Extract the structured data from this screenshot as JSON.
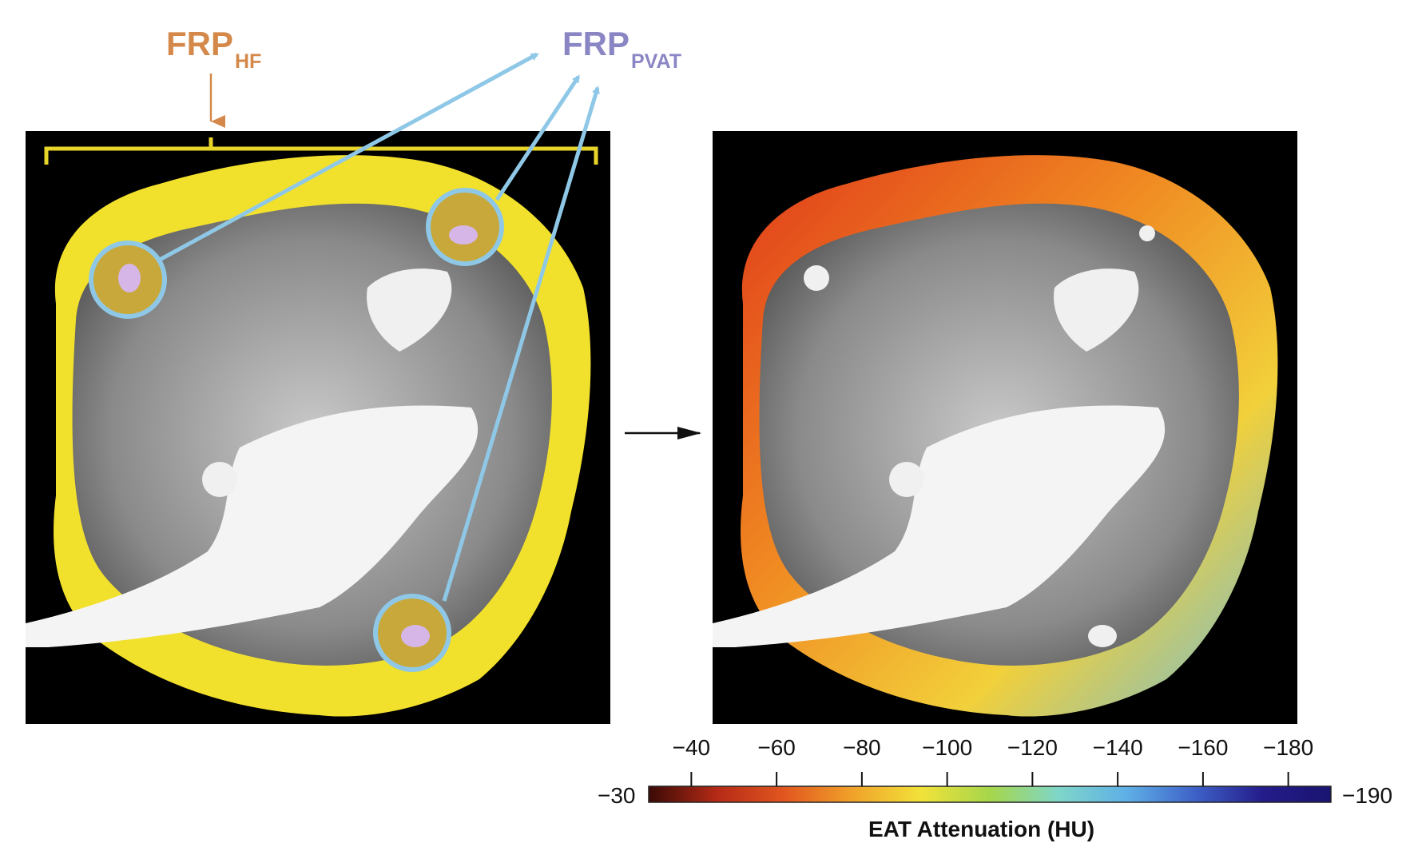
{
  "labels": {
    "frp_hf": {
      "main": "FRP",
      "sub": "HF"
    },
    "frp_pvat": {
      "main": "FRP",
      "sub": "PVAT"
    }
  },
  "colors": {
    "frp_hf": "#d4894a",
    "frp_pvat": "#8a86c4",
    "fat_mask": "#f2e12c",
    "pvat_ring": "#8fc8e6",
    "bracket": "#e8d52a",
    "arrow": "#111111"
  },
  "colorbar": {
    "tick_labels": [
      "−40",
      "−60",
      "−80",
      "−100",
      "−120",
      "−140",
      "−160",
      "−180"
    ],
    "min_label": "−30",
    "max_label": "−190",
    "title": "EAT Attenuation (HU)",
    "gradient_colors": [
      "#3a0a06",
      "#b52a16",
      "#e2571f",
      "#f0a32a",
      "#f2e23a",
      "#a6d64a",
      "#7fd6c8",
      "#5fb0e6",
      "#3e62c8",
      "#241c8a",
      "#1a1470"
    ]
  }
}
